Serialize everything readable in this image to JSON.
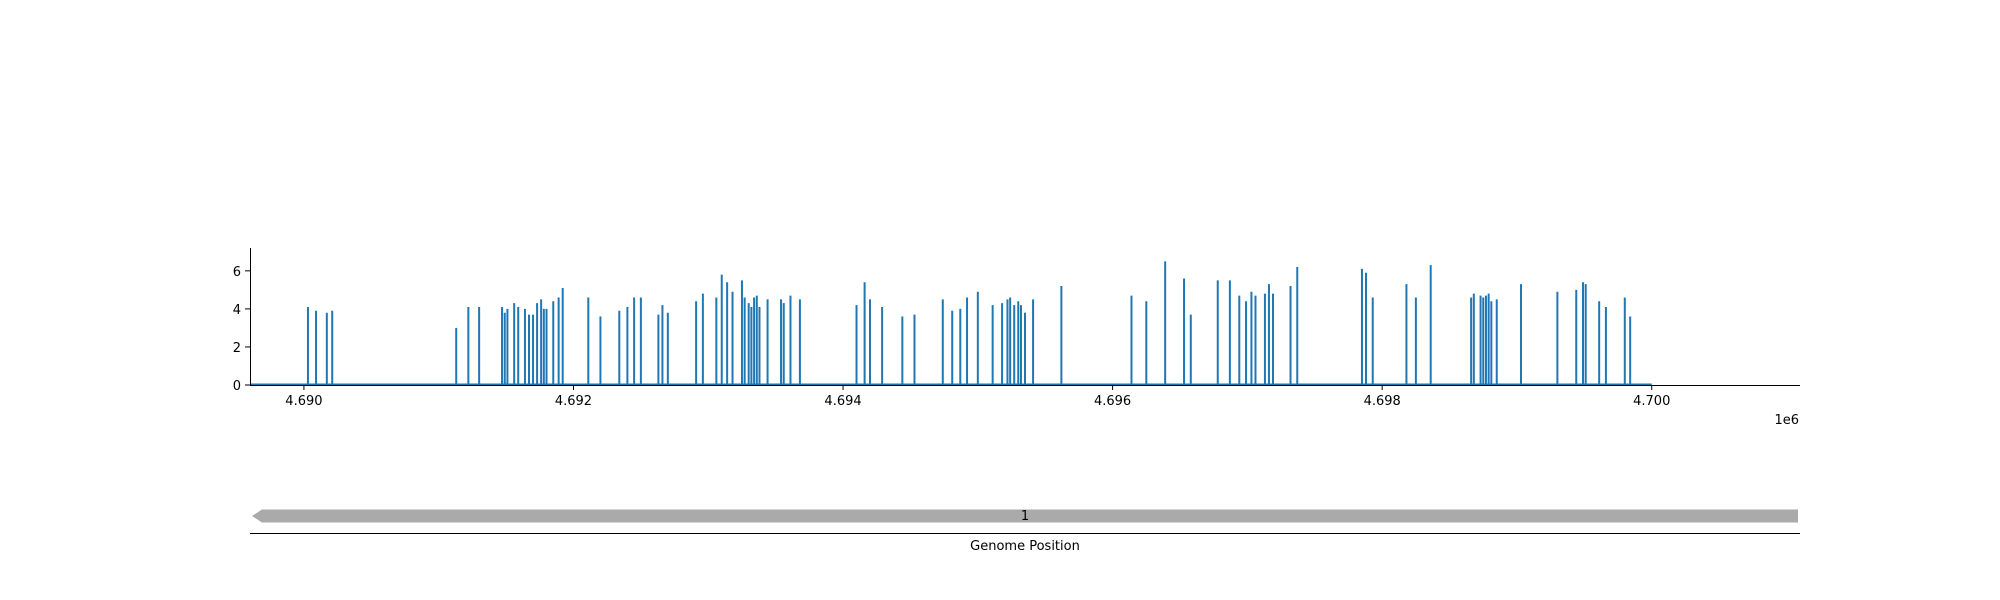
{
  "chart_data": [
    {
      "type": "bar",
      "chart_kind": "stem",
      "color": "#1f77b4",
      "x_offset_label": "1e6",
      "xlim": [
        4689600,
        4701100
      ],
      "ylim": [
        0,
        7.2
      ],
      "x_ticks": [
        4690000,
        4692000,
        4694000,
        4696000,
        4698000,
        4700000
      ],
      "x_tick_labels": [
        "4.690",
        "4.692",
        "4.694",
        "4.696",
        "4.698",
        "4.700"
      ],
      "y_ticks": [
        0,
        2,
        4,
        6
      ],
      "y_tick_labels": [
        "0",
        "2",
        "4",
        "6"
      ],
      "line_extent": [
        4689600,
        4700000
      ],
      "points": [
        {
          "x": 4690030,
          "y": 4.1
        },
        {
          "x": 4690090,
          "y": 3.9
        },
        {
          "x": 4690170,
          "y": 3.8
        },
        {
          "x": 4690210,
          "y": 3.9
        },
        {
          "x": 4691130,
          "y": 3.0
        },
        {
          "x": 4691220,
          "y": 4.1
        },
        {
          "x": 4691300,
          "y": 4.1
        },
        {
          "x": 4691470,
          "y": 4.1
        },
        {
          "x": 4691490,
          "y": 3.8
        },
        {
          "x": 4691510,
          "y": 4.0
        },
        {
          "x": 4691560,
          "y": 4.3
        },
        {
          "x": 4691590,
          "y": 4.1
        },
        {
          "x": 4691640,
          "y": 4.0
        },
        {
          "x": 4691670,
          "y": 3.7
        },
        {
          "x": 4691700,
          "y": 3.7
        },
        {
          "x": 4691730,
          "y": 4.3
        },
        {
          "x": 4691760,
          "y": 4.5
        },
        {
          "x": 4691780,
          "y": 4.0
        },
        {
          "x": 4691800,
          "y": 4.0
        },
        {
          "x": 4691850,
          "y": 4.4
        },
        {
          "x": 4691890,
          "y": 4.6
        },
        {
          "x": 4691920,
          "y": 5.1
        },
        {
          "x": 4692110,
          "y": 4.6
        },
        {
          "x": 4692200,
          "y": 3.6
        },
        {
          "x": 4692340,
          "y": 3.9
        },
        {
          "x": 4692400,
          "y": 4.1
        },
        {
          "x": 4692450,
          "y": 4.6
        },
        {
          "x": 4692500,
          "y": 4.6
        },
        {
          "x": 4692630,
          "y": 3.7
        },
        {
          "x": 4692660,
          "y": 4.2
        },
        {
          "x": 4692700,
          "y": 3.8
        },
        {
          "x": 4692910,
          "y": 4.4
        },
        {
          "x": 4692960,
          "y": 4.8
        },
        {
          "x": 4693060,
          "y": 4.6
        },
        {
          "x": 4693100,
          "y": 5.8
        },
        {
          "x": 4693140,
          "y": 5.4
        },
        {
          "x": 4693180,
          "y": 4.9
        },
        {
          "x": 4693250,
          "y": 5.5
        },
        {
          "x": 4693270,
          "y": 4.6
        },
        {
          "x": 4693300,
          "y": 4.3
        },
        {
          "x": 4693320,
          "y": 4.1
        },
        {
          "x": 4693340,
          "y": 4.6
        },
        {
          "x": 4693360,
          "y": 4.7
        },
        {
          "x": 4693380,
          "y": 4.1
        },
        {
          "x": 4693440,
          "y": 4.5
        },
        {
          "x": 4693540,
          "y": 4.5
        },
        {
          "x": 4693560,
          "y": 4.3
        },
        {
          "x": 4693610,
          "y": 4.7
        },
        {
          "x": 4693680,
          "y": 4.5
        },
        {
          "x": 4694100,
          "y": 4.2
        },
        {
          "x": 4694160,
          "y": 5.4
        },
        {
          "x": 4694200,
          "y": 4.5
        },
        {
          "x": 4694290,
          "y": 4.1
        },
        {
          "x": 4694440,
          "y": 3.6
        },
        {
          "x": 4694530,
          "y": 3.7
        },
        {
          "x": 4694740,
          "y": 4.5
        },
        {
          "x": 4694810,
          "y": 3.9
        },
        {
          "x": 4694870,
          "y": 4.0
        },
        {
          "x": 4694920,
          "y": 4.6
        },
        {
          "x": 4695000,
          "y": 4.9
        },
        {
          "x": 4695110,
          "y": 4.2
        },
        {
          "x": 4695180,
          "y": 4.3
        },
        {
          "x": 4695220,
          "y": 4.5
        },
        {
          "x": 4695240,
          "y": 4.6
        },
        {
          "x": 4695270,
          "y": 4.2
        },
        {
          "x": 4695300,
          "y": 4.4
        },
        {
          "x": 4695320,
          "y": 4.2
        },
        {
          "x": 4695350,
          "y": 3.8
        },
        {
          "x": 4695410,
          "y": 4.5
        },
        {
          "x": 4695620,
          "y": 5.2
        },
        {
          "x": 4696140,
          "y": 4.7
        },
        {
          "x": 4696250,
          "y": 4.4
        },
        {
          "x": 4696390,
          "y": 6.5
        },
        {
          "x": 4696530,
          "y": 5.6
        },
        {
          "x": 4696580,
          "y": 3.7
        },
        {
          "x": 4696780,
          "y": 5.5
        },
        {
          "x": 4696870,
          "y": 5.5
        },
        {
          "x": 4696940,
          "y": 4.7
        },
        {
          "x": 4696990,
          "y": 4.4
        },
        {
          "x": 4697030,
          "y": 4.9
        },
        {
          "x": 4697060,
          "y": 4.7
        },
        {
          "x": 4697130,
          "y": 4.8
        },
        {
          "x": 4697160,
          "y": 5.3
        },
        {
          "x": 4697190,
          "y": 4.8
        },
        {
          "x": 4697320,
          "y": 5.2
        },
        {
          "x": 4697370,
          "y": 6.2
        },
        {
          "x": 4697850,
          "y": 6.1
        },
        {
          "x": 4697880,
          "y": 5.9
        },
        {
          "x": 4697930,
          "y": 4.6
        },
        {
          "x": 4698180,
          "y": 5.3
        },
        {
          "x": 4698250,
          "y": 4.6
        },
        {
          "x": 4698360,
          "y": 6.3
        },
        {
          "x": 4698660,
          "y": 4.6
        },
        {
          "x": 4698680,
          "y": 4.8
        },
        {
          "x": 4698730,
          "y": 4.7
        },
        {
          "x": 4698750,
          "y": 4.6
        },
        {
          "x": 4698770,
          "y": 4.7
        },
        {
          "x": 4698790,
          "y": 4.8
        },
        {
          "x": 4698810,
          "y": 4.4
        },
        {
          "x": 4698850,
          "y": 4.5
        },
        {
          "x": 4699030,
          "y": 5.3
        },
        {
          "x": 4699300,
          "y": 4.9
        },
        {
          "x": 4699440,
          "y": 5.0
        },
        {
          "x": 4699490,
          "y": 5.4
        },
        {
          "x": 4699510,
          "y": 5.3
        },
        {
          "x": 4699610,
          "y": 4.4
        },
        {
          "x": 4699660,
          "y": 4.1
        },
        {
          "x": 4699800,
          "y": 4.6
        },
        {
          "x": 4699840,
          "y": 3.6
        }
      ]
    },
    {
      "type": "other",
      "chart_kind": "genome-track",
      "xlabel": "Genome Position",
      "feature": {
        "label": "1",
        "strand": "-",
        "color": "#aaaaaa"
      }
    }
  ]
}
